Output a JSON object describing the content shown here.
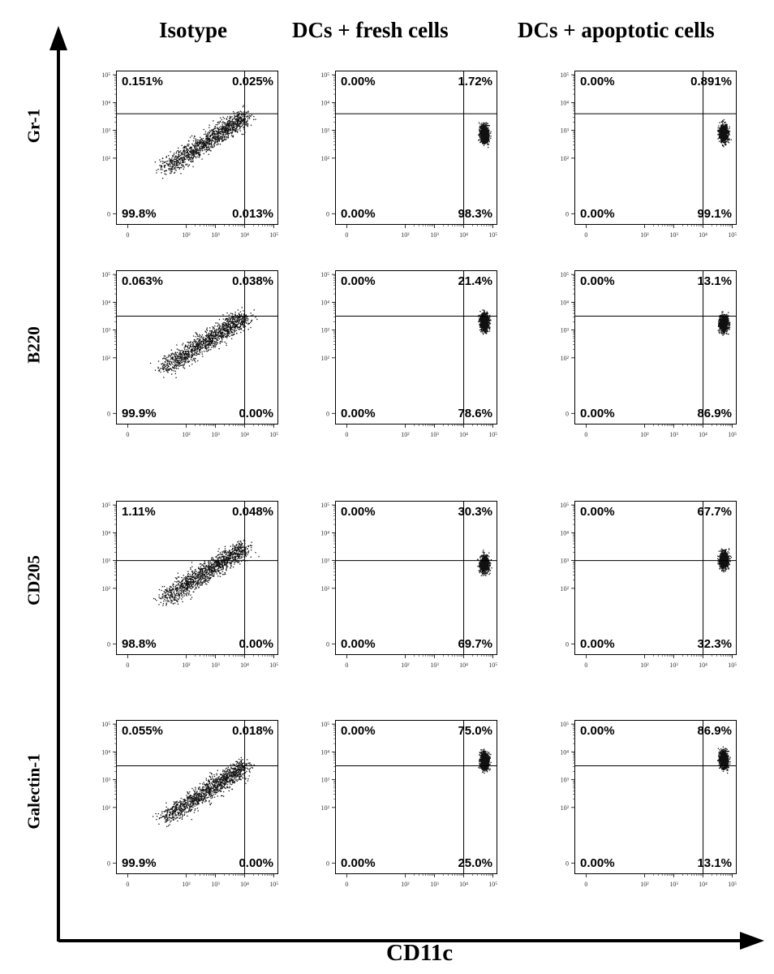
{
  "figure": {
    "column_headers": [
      "Isotype",
      "DCs + fresh cells",
      "DCs + apoptotic cells"
    ],
    "row_labels": [
      "Gr-1",
      "B220",
      "CD205",
      "Galectin-1"
    ],
    "x_axis_title": "CD11c"
  },
  "chart_data": {
    "type": "scatter",
    "subtype": "flow-cytometry-quadrant-plots",
    "xlabel": "CD11c",
    "x_tick_labels": [
      "0",
      "10²",
      "10³",
      "10⁴",
      "10⁵"
    ],
    "y_tick_labels": [
      "0",
      "10²",
      "10³",
      "10⁴",
      "10⁵"
    ],
    "x_scale": "biexponential",
    "y_scale": "biexponential",
    "panels": [
      {
        "row": "Gr-1",
        "column": "Isotype",
        "gate_x": 4.0,
        "gate_y": 3.6,
        "quadrants": {
          "ul": "0.151%",
          "ur": "0.025%",
          "ll": "99.8%",
          "lr": "0.013%"
        },
        "population": "diagonal"
      },
      {
        "row": "Gr-1",
        "column": "DCs + fresh cells",
        "gate_x": 4.0,
        "gate_y": 3.6,
        "quadrants": {
          "ul": "0.00%",
          "ur": "1.72%",
          "ll": "0.00%",
          "lr": "98.3%"
        },
        "population": {
          "x": 4.7,
          "y": 2.9
        }
      },
      {
        "row": "Gr-1",
        "column": "DCs + apoptotic cells",
        "gate_x": 4.0,
        "gate_y": 3.6,
        "quadrants": {
          "ul": "0.00%",
          "ur": "0.891%",
          "ll": "0.00%",
          "lr": "99.1%"
        },
        "population": {
          "x": 4.7,
          "y": 2.9
        }
      },
      {
        "row": "B220",
        "column": "Isotype",
        "gate_x": 4.0,
        "gate_y": 3.5,
        "quadrants": {
          "ul": "0.063%",
          "ur": "0.038%",
          "ll": "99.9%",
          "lr": "0.00%"
        },
        "population": "diagonal"
      },
      {
        "row": "B220",
        "column": "DCs + fresh cells",
        "gate_x": 4.0,
        "gate_y": 3.5,
        "quadrants": {
          "ul": "0.00%",
          "ur": "21.4%",
          "ll": "0.00%",
          "lr": "78.6%"
        },
        "population": {
          "x": 4.7,
          "y": 3.3
        }
      },
      {
        "row": "B220",
        "column": "DCs + apoptotic cells",
        "gate_x": 4.0,
        "gate_y": 3.5,
        "quadrants": {
          "ul": "0.00%",
          "ur": "13.1%",
          "ll": "0.00%",
          "lr": "86.9%"
        },
        "population": {
          "x": 4.7,
          "y": 3.25
        }
      },
      {
        "row": "CD205",
        "column": "Isotype",
        "gate_x": 4.0,
        "gate_y": 3.0,
        "quadrants": {
          "ul": "1.11%",
          "ur": "0.048%",
          "ll": "98.8%",
          "lr": "0.00%"
        },
        "population": "diagonal"
      },
      {
        "row": "CD205",
        "column": "DCs + fresh cells",
        "gate_x": 4.0,
        "gate_y": 3.0,
        "quadrants": {
          "ul": "0.00%",
          "ur": "30.3%",
          "ll": "0.00%",
          "lr": "69.7%"
        },
        "population": {
          "x": 4.7,
          "y": 2.9
        }
      },
      {
        "row": "CD205",
        "column": "DCs + apoptotic cells",
        "gate_x": 4.0,
        "gate_y": 3.0,
        "quadrants": {
          "ul": "0.00%",
          "ur": "67.7%",
          "ll": "0.00%",
          "lr": "32.3%"
        },
        "population": {
          "x": 4.7,
          "y": 3.05
        }
      },
      {
        "row": "Galectin-1",
        "column": "Isotype",
        "gate_x": 4.0,
        "gate_y": 3.5,
        "quadrants": {
          "ul": "0.055%",
          "ur": "0.018%",
          "ll": "99.9%",
          "lr": "0.00%"
        },
        "population": "diagonal"
      },
      {
        "row": "Galectin-1",
        "column": "DCs + fresh cells",
        "gate_x": 4.0,
        "gate_y": 3.5,
        "quadrants": {
          "ul": "0.00%",
          "ur": "75.0%",
          "ll": "0.00%",
          "lr": "25.0%"
        },
        "population": {
          "x": 4.7,
          "y": 3.7
        }
      },
      {
        "row": "Galectin-1",
        "column": "DCs + apoptotic cells",
        "gate_x": 4.0,
        "gate_y": 3.5,
        "quadrants": {
          "ul": "0.00%",
          "ur": "86.9%",
          "ll": "0.00%",
          "lr": "13.1%"
        },
        "population": {
          "x": 4.7,
          "y": 3.75
        }
      }
    ]
  }
}
